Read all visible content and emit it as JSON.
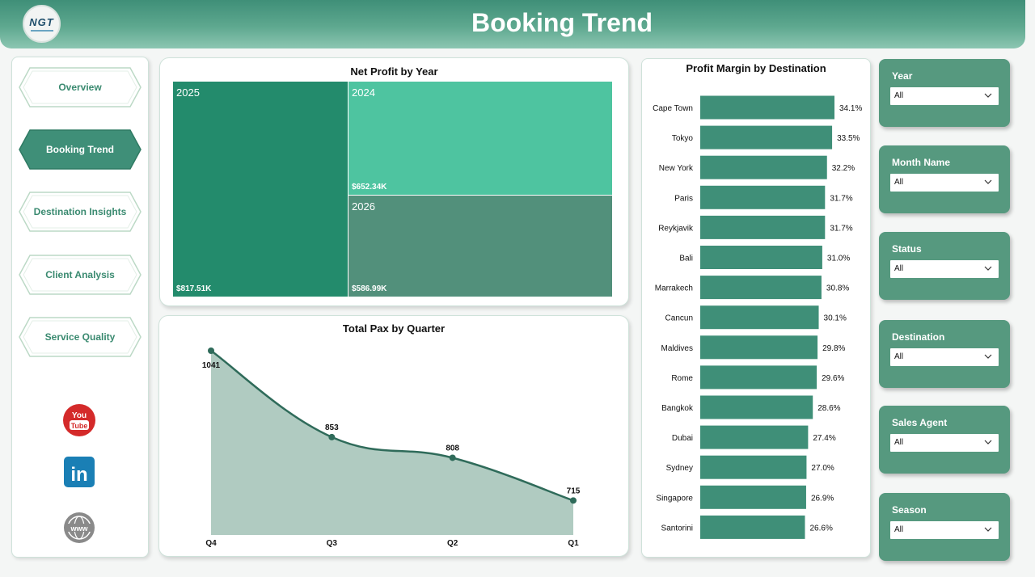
{
  "header": {
    "title": "Booking Trend",
    "logo_text": "NGT"
  },
  "nav": [
    {
      "label": "Overview",
      "active": false
    },
    {
      "label": "Booking Trend",
      "active": true
    },
    {
      "label": "Destination Insights",
      "active": false
    },
    {
      "label": "Client Analysis",
      "active": false
    },
    {
      "label": "Service Quality",
      "active": false
    }
  ],
  "social": [
    {
      "icon": "youtube-icon",
      "label": "You Tube"
    },
    {
      "icon": "linkedin-icon",
      "label": "in"
    },
    {
      "icon": "globe-icon",
      "label": "www"
    }
  ],
  "colors": {
    "accent": "#3f8f78",
    "bar": "#3f8f78",
    "tm_2025": "#238b6c",
    "tm_2024": "#4ec4a0",
    "tm_2026": "#52907b",
    "area_fill": "#b0cbc1",
    "line": "#2f6b5a"
  },
  "net_profit": {
    "title": "Net Profit by Year",
    "cells": [
      {
        "year": "2025",
        "value": "$817.51K"
      },
      {
        "year": "2024",
        "value": "$652.34K"
      },
      {
        "year": "2026",
        "value": "$586.99K"
      }
    ]
  },
  "chart_data": [
    {
      "type": "area",
      "title": "Total Pax by Quarter",
      "categories": [
        "Q4",
        "Q3",
        "Q2",
        "Q1"
      ],
      "values": [
        1041,
        853,
        808,
        715
      ],
      "data_labels": [
        "1041",
        "853",
        "808",
        "715"
      ]
    },
    {
      "type": "bar",
      "orientation": "horizontal",
      "title": "Profit Margin by Destination",
      "categories": [
        "Cape Town",
        "Tokyo",
        "New York",
        "Paris",
        "Reykjavik",
        "Bali",
        "Marrakech",
        "Cancun",
        "Maldives",
        "Rome",
        "Bangkok",
        "Dubai",
        "Sydney",
        "Singapore",
        "Santorini"
      ],
      "values": [
        34.1,
        33.5,
        32.2,
        31.7,
        31.7,
        31.0,
        30.8,
        30.1,
        29.8,
        29.6,
        28.6,
        27.4,
        27.0,
        26.9,
        26.6
      ],
      "data_labels": [
        "34.1%",
        "33.5%",
        "32.2%",
        "31.7%",
        "31.7%",
        "31.0%",
        "30.8%",
        "30.1%",
        "29.8%",
        "29.6%",
        "28.6%",
        "27.4%",
        "27.0%",
        "26.9%",
        "26.6%"
      ]
    }
  ],
  "slicers": [
    {
      "title": "Year",
      "value": "All"
    },
    {
      "title": "Month Name",
      "value": "All"
    },
    {
      "title": "Status",
      "value": "All"
    },
    {
      "title": "Destination",
      "value": "All"
    },
    {
      "title": "Sales Agent",
      "value": "All"
    },
    {
      "title": "Season",
      "value": "All"
    }
  ]
}
